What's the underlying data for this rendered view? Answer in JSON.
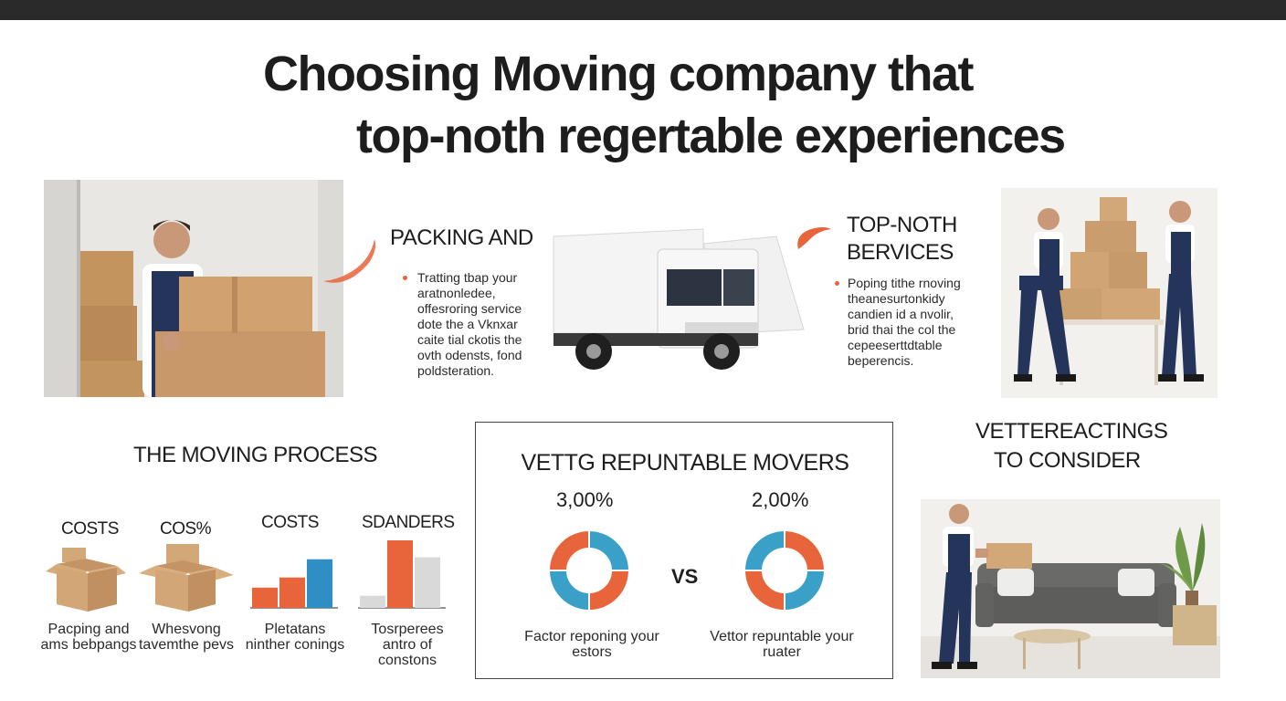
{
  "title": {
    "line1": "Choosing Moving company that",
    "line2": "top-noth regertable experiences"
  },
  "packing": {
    "heading": "PACKING AND",
    "body": "Tratting tbap your aratnonledee, offesroring service dote the a Vknxar caite tial ckotis the ovth odensts, fond poldsteration."
  },
  "services": {
    "heading_line1": "TOP-NOTH",
    "heading_line2": "BERVICES",
    "body": "Poping tithe rnoving theanesurtonkidy candien id a nvolir, brid thai the col the cepeeserttdtable beperencis."
  },
  "process": {
    "heading": "THE MOVING PROCESS",
    "columns": [
      {
        "title": "COSTS",
        "caption": "Pacping and ams bebpangs"
      },
      {
        "title": "COS%",
        "caption": "Whesvong tavemthe pevs"
      },
      {
        "title": "COSTS",
        "caption": "Pletatans ninther conings"
      },
      {
        "title": "SDANDERS",
        "caption": "Tosrperees antro of constons"
      }
    ]
  },
  "vetting": {
    "heading": "VETTG REPUNTABLE MOVERS",
    "vs": "VS",
    "left": {
      "pct": "3,00%",
      "caption": "Factor reponing your estors"
    },
    "right": {
      "pct": "2,00%",
      "caption": "Vettor repuntable your ruater"
    }
  },
  "consider": {
    "line1": "VETTEREACTINGS",
    "line2": "TO CONSIDER"
  },
  "chart_data": [
    {
      "type": "bar",
      "categories": [
        "1",
        "2",
        "3"
      ],
      "series": [
        {
          "values": [
            30,
            45,
            72
          ],
          "colors": [
            "#e8643a",
            "#e8643a",
            "#2f8fc4"
          ]
        }
      ],
      "title": "COSTS"
    },
    {
      "type": "bar",
      "categories": [
        "1",
        "2",
        "3"
      ],
      "series": [
        {
          "values": [
            18,
            100,
            75
          ],
          "colors": [
            "#d9d9d9",
            "#e8643a",
            "#d9d9d9"
          ]
        }
      ],
      "title": "SDANDERS"
    },
    {
      "type": "pie",
      "slices": [
        {
          "value": 25,
          "color": "#3aa0c8"
        },
        {
          "value": 25,
          "color": "#e8643a"
        },
        {
          "value": 25,
          "color": "#3aa0c8"
        },
        {
          "value": 25,
          "color": "#e8643a"
        }
      ]
    },
    {
      "type": "pie",
      "slices": [
        {
          "value": 25,
          "color": "#e8643a"
        },
        {
          "value": 25,
          "color": "#3aa0c8"
        },
        {
          "value": 25,
          "color": "#e8643a"
        },
        {
          "value": 25,
          "color": "#3aa0c8"
        }
      ]
    }
  ],
  "icons": {
    "accent": "#e8643a",
    "blue": "#2f8fc4",
    "box": "#c99a6a"
  }
}
